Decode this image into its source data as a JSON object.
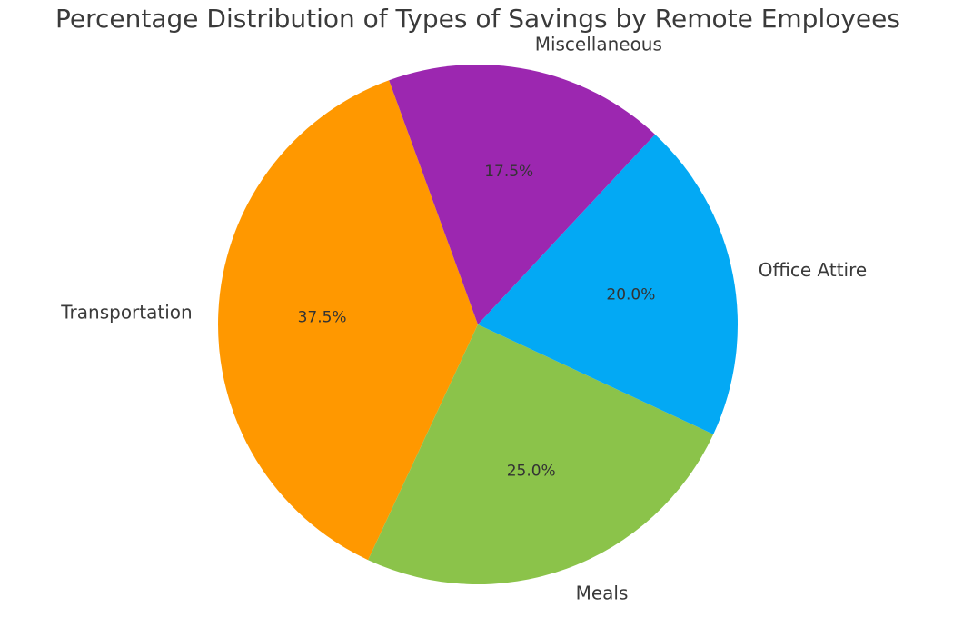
{
  "chart_data": {
    "type": "pie",
    "title": "Percentage Distribution of Types of Savings by Remote Employees",
    "start_angle_deg": 110,
    "direction": "counterclockwise",
    "slices": [
      {
        "label": "Transportation",
        "value": 37.5,
        "pct_label": "37.5%",
        "color": "#FF9800"
      },
      {
        "label": "Meals",
        "value": 25.0,
        "pct_label": "25.0%",
        "color": "#8BC34A"
      },
      {
        "label": "Office Attire",
        "value": 20.0,
        "pct_label": "20.0%",
        "color": "#03A9F4"
      },
      {
        "label": "Miscellaneous",
        "value": 17.5,
        "pct_label": "17.5%",
        "color": "#9C27B0"
      }
    ]
  }
}
